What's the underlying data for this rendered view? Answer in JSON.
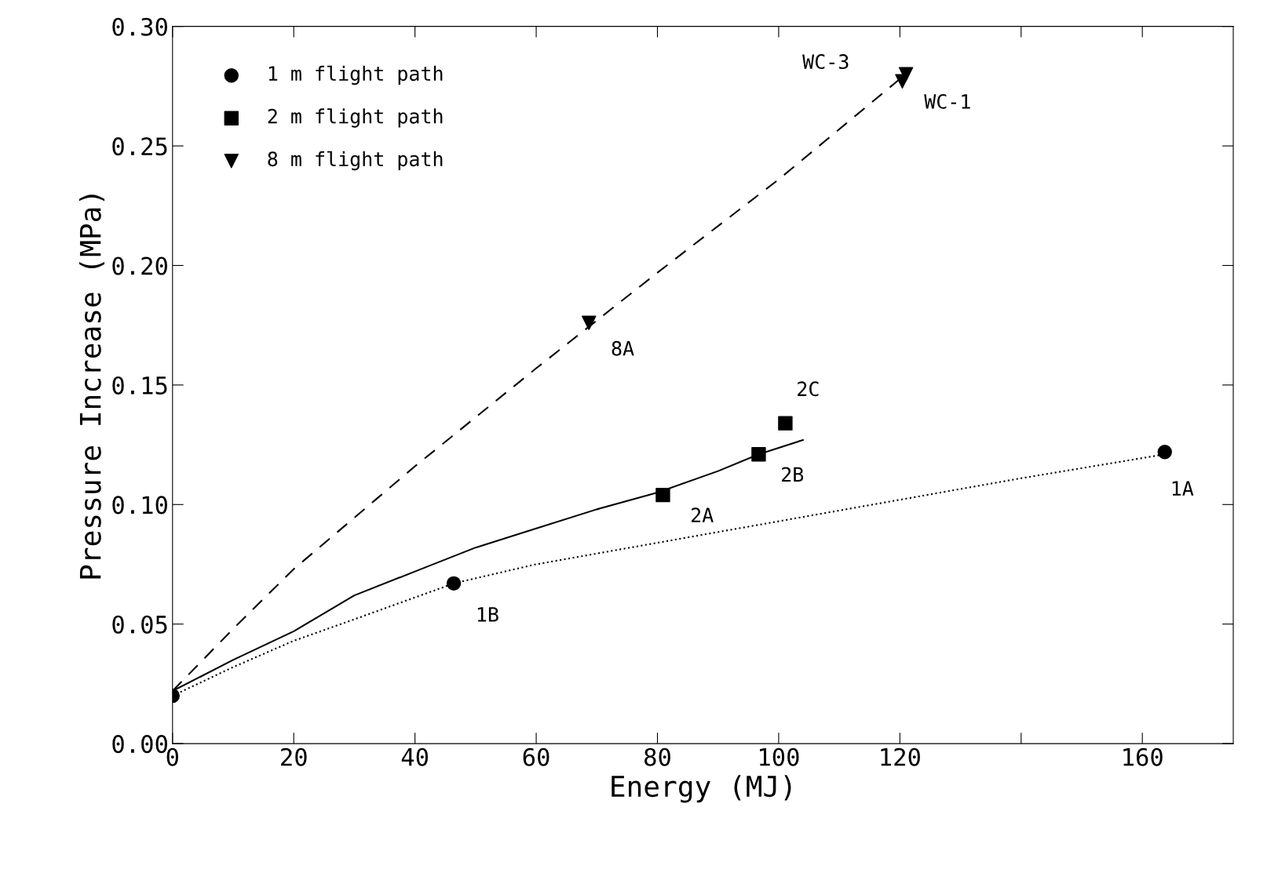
{
  "chart_data": {
    "type": "scatter",
    "xlabel": "Energy (MJ)",
    "ylabel": "Pressure Increase (MPa)",
    "xlim": [
      0,
      175
    ],
    "xticks": [
      0,
      20,
      40,
      60,
      80,
      100,
      120,
      {
        "value": 140,
        "label": null
      },
      160
    ],
    "ylim": [
      0,
      0.3
    ],
    "yticks": [
      {
        "value": 0,
        "label": "0.00"
      },
      {
        "value": 0.05,
        "label": "0.05"
      },
      {
        "value": 0.1,
        "label": "0.10"
      },
      {
        "value": 0.15,
        "label": "0.15"
      },
      {
        "value": 0.2,
        "label": "0.20"
      },
      {
        "value": 0.25,
        "label": "0.25"
      },
      {
        "value": 0.3,
        "label": "0.30"
      }
    ],
    "grid": false,
    "legend": "top left",
    "series": [
      {
        "name": "1 m flight path",
        "marker": "circle",
        "color": "#000000",
        "x": [
          0,
          46.4,
          163.7
        ],
        "values": [
          0.02,
          0.067,
          0.122
        ]
      },
      {
        "name": "2 m flight path",
        "marker": "square",
        "color": "#000000",
        "x": [
          80.9,
          96.7,
          101.1
        ],
        "values": [
          0.104,
          0.121,
          0.134
        ]
      },
      {
        "name": "8 m flight path",
        "marker": "triangle",
        "color": "#000000",
        "x": [
          68.7,
          120.4,
          121
        ],
        "values": [
          0.176,
          0.277,
          0.28
        ]
      },
      {
        "type": "line",
        "line_style": "dotted",
        "color": "#000000",
        "x": [
          0,
          10,
          20,
          30,
          46.4,
          60,
          80,
          100,
          120,
          140,
          163.7
        ],
        "values": [
          0.02,
          0.032,
          0.043,
          0.052,
          0.067,
          0.075,
          0.084,
          0.093,
          0.102,
          0.111,
          0.121
        ]
      },
      {
        "type": "line",
        "line_style": "solid",
        "color": "#000000",
        "x": [
          0,
          10,
          20,
          30,
          40,
          50,
          60,
          70,
          80,
          90,
          96.7,
          104
        ],
        "values": [
          0.022,
          0.035,
          0.047,
          0.062,
          0.072,
          0.082,
          0.09,
          0.098,
          0.105,
          0.114,
          0.121,
          0.127
        ]
      },
      {
        "type": "line",
        "line_style": "dashed",
        "color": "#000000",
        "x": [
          0,
          10,
          20,
          40,
          60,
          80,
          100,
          120
        ],
        "values": [
          0.022,
          0.048,
          0.073,
          0.116,
          0.157,
          0.197,
          0.236,
          0.278
        ]
      }
    ],
    "annotations": [
      {
        "text": "1B",
        "x": 46.4,
        "y": 0.067
      },
      {
        "text": "1A",
        "x": 163.7,
        "y": 0.122
      },
      {
        "text": "2A",
        "x": 80.9,
        "y": 0.104
      },
      {
        "text": "2B",
        "x": 96.7,
        "y": 0.121
      },
      {
        "text": "2C",
        "x": 101.1,
        "y": 0.134
      },
      {
        "text": "8A",
        "x": 68.7,
        "y": 0.176
      },
      {
        "text": "WC-3",
        "x": 121,
        "y": 0.28
      },
      {
        "text": "WC-1",
        "x": 120.4,
        "y": 0.277
      }
    ]
  }
}
